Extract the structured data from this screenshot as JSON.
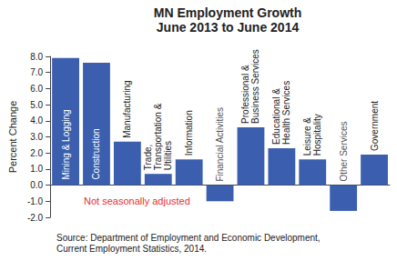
{
  "chart_data": {
    "type": "bar",
    "title": "MN Employment Growth",
    "subtitle": "June 2013 to June 2014",
    "y_label": "Percent Change",
    "categories": [
      "Mining & Logging",
      "Construction",
      "Manufacturing",
      "Trade, Transportation & Utilities",
      "Information",
      "Financial Activities",
      "Professional & Business Services",
      "Educational & Health Services",
      "Leisure & Hospitality",
      "Other Services",
      "Government"
    ],
    "values": [
      7.9,
      7.6,
      2.7,
      0.7,
      1.6,
      -1.0,
      3.6,
      2.3,
      1.6,
      -1.6,
      1.9
    ],
    "color": "#3b5fae",
    "ylim": [
      -2,
      8
    ],
    "yticks": [
      {
        "value": -2,
        "label": "-2.0"
      },
      {
        "value": -1,
        "label": "-1.0"
      },
      {
        "value": 0,
        "label": "0.0"
      },
      {
        "value": 1,
        "label": "1.0"
      },
      {
        "value": 2,
        "label": "2.0"
      },
      {
        "value": 3,
        "label": "3.0"
      },
      {
        "value": 4,
        "label": "4.0"
      },
      {
        "value": 5,
        "label": "5.0"
      },
      {
        "value": 6,
        "label": "6.0"
      },
      {
        "value": 7,
        "label": "7.0"
      },
      {
        "value": 8,
        "label": "8.0"
      }
    ],
    "grid": false,
    "tick_labels": "y",
    "annotations": [
      {
        "text": "Not seasonally adjusted",
        "color": "#e8312f"
      }
    ],
    "source": [
      "Source: Department of Employment and Economic Development,",
      "Current Employment Statistics, 2014."
    ]
  }
}
